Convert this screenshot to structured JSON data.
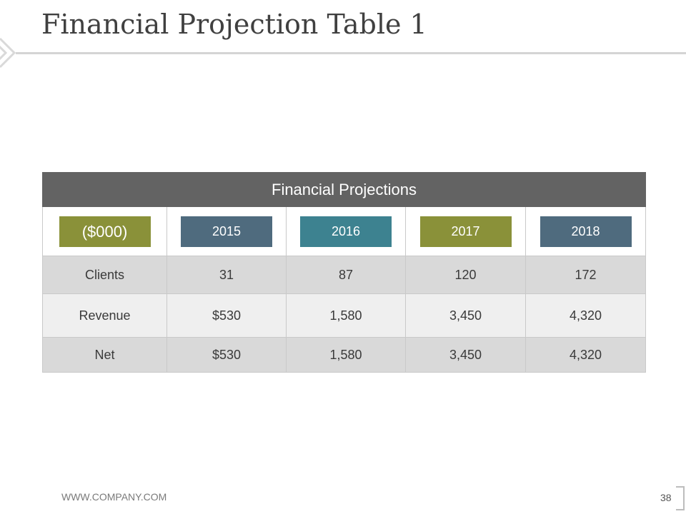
{
  "slide": {
    "title": "Financial Projection Table 1",
    "footer_url": "WWW.COMPANY.COM",
    "page_number": "38"
  },
  "table": {
    "title": "Financial Projections",
    "units_label": "($000)",
    "years": [
      "2015",
      "2016",
      "2017",
      "2018"
    ],
    "rows": [
      {
        "label": "Clients",
        "values": [
          "31",
          "87",
          "120",
          "172"
        ]
      },
      {
        "label": "Revenue",
        "values": [
          "$530",
          "1,580",
          "3,450",
          "4,320"
        ]
      },
      {
        "label": "Net",
        "values": [
          "$530",
          "1,580",
          "3,450",
          "4,320"
        ]
      }
    ]
  },
  "colors": {
    "olive": "#8a9139",
    "slate": "#4f6b7e",
    "teal": "#3d8290",
    "header_gray": "#636363"
  }
}
